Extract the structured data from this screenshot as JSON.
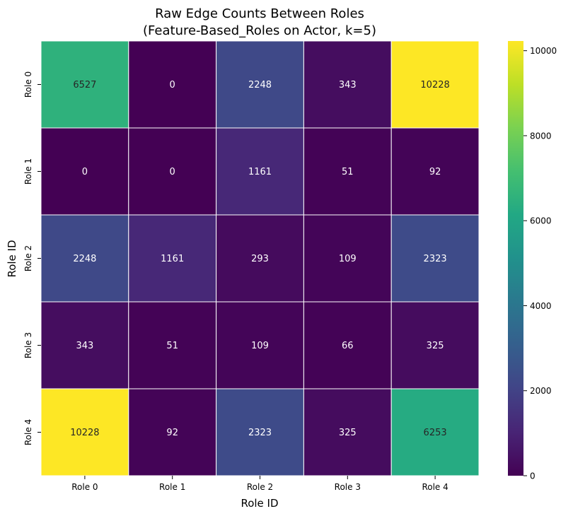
{
  "chart_data": {
    "type": "heatmap",
    "title_lines": [
      "Raw Edge Counts Between Roles",
      "(Feature-Based_Roles on Actor, k=5)"
    ],
    "xlabel": "Role ID",
    "ylabel": "Role ID",
    "x_categories": [
      "Role 0",
      "Role 1",
      "Role 2",
      "Role 3",
      "Role 4"
    ],
    "y_categories": [
      "Role 0",
      "Role 1",
      "Role 2",
      "Role 3",
      "Role 4"
    ],
    "values": [
      [
        6527,
        0,
        2248,
        343,
        10228
      ],
      [
        0,
        0,
        1161,
        51,
        92
      ],
      [
        2248,
        1161,
        293,
        109,
        2323
      ],
      [
        343,
        51,
        109,
        66,
        325
      ],
      [
        10228,
        92,
        2323,
        325,
        6253
      ]
    ],
    "colormap": "viridis",
    "vmin": 0,
    "vmax": 10228,
    "colorbar_ticks": [
      0,
      2000,
      4000,
      6000,
      8000,
      10000
    ],
    "colorbar_tick_labels": [
      "0",
      "2000",
      "4000",
      "6000",
      "8000",
      "10000"
    ],
    "annotations": true,
    "cell_line_color": "#ffffff"
  }
}
